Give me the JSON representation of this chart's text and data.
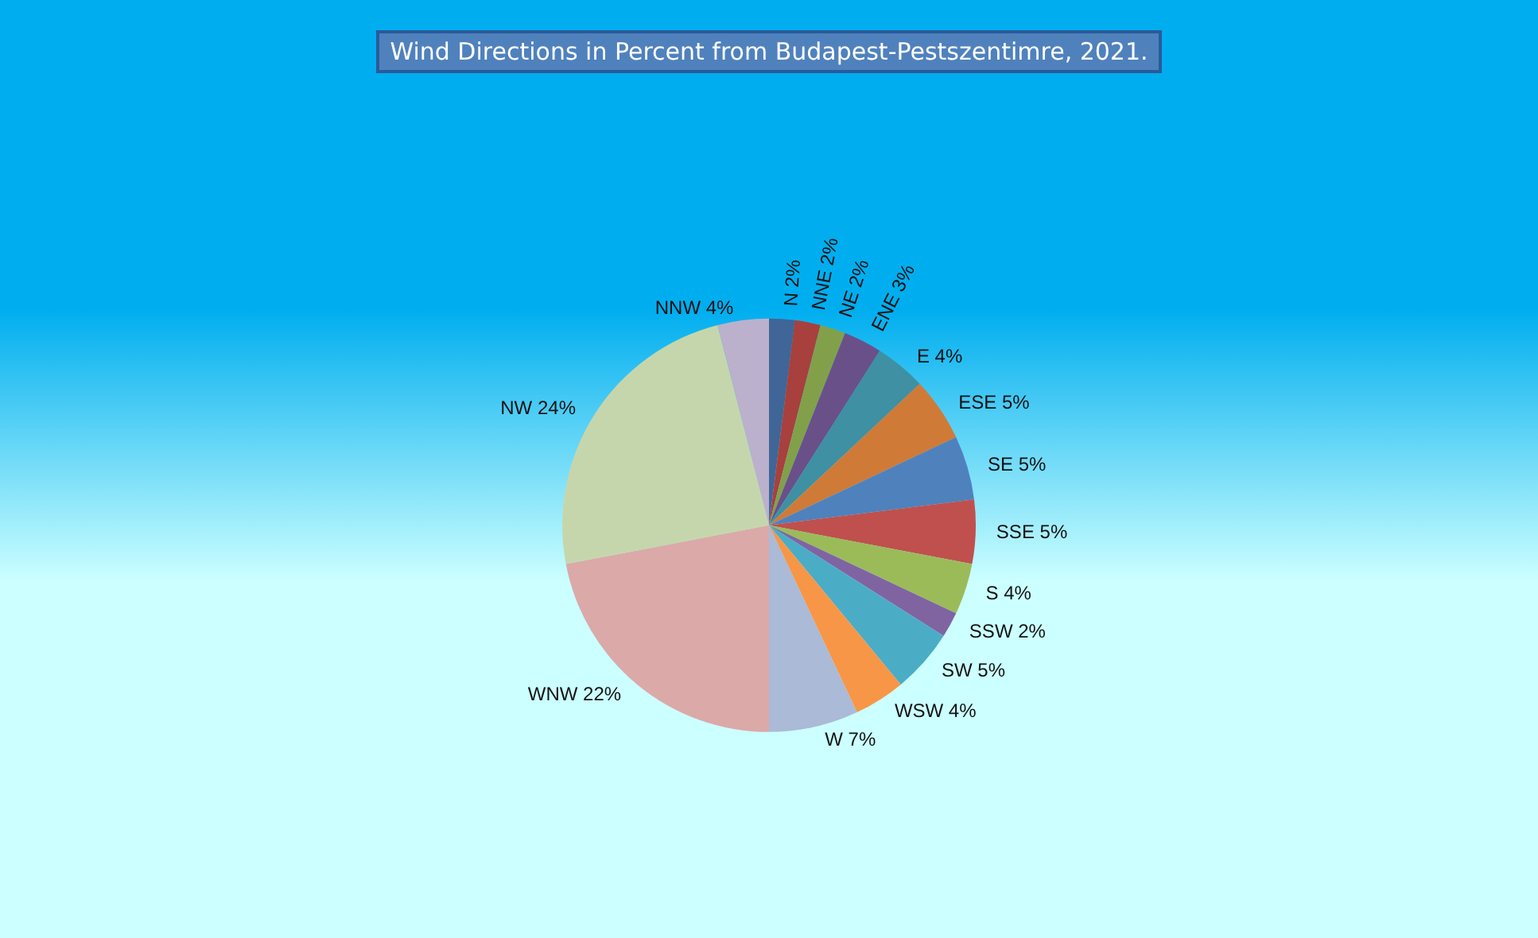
{
  "chart_data": {
    "type": "pie",
    "title": "Wind Directions in Percent from Budapest-Pestszentimre, 2021.",
    "categories": [
      "N",
      "NNE",
      "NE",
      "ENE",
      "E",
      "ESE",
      "SE",
      "SSE",
      "S",
      "SSW",
      "SW",
      "WSW",
      "W",
      "WNW",
      "NW",
      "NNW"
    ],
    "values": [
      2,
      2,
      2,
      3,
      4,
      5,
      5,
      5,
      4,
      2,
      5,
      4,
      7,
      22,
      24,
      4
    ],
    "colors": [
      "#3f6696",
      "#a8403e",
      "#82a04a",
      "#6a5088",
      "#3e90a2",
      "#d07a38",
      "#4f81bd",
      "#c0504d",
      "#9bbb59",
      "#8064a2",
      "#4bacc6",
      "#f79646",
      "#aabad7",
      "#dba9a8",
      "#c6d6ac",
      "#bbb1cc"
    ],
    "value_labels": [
      "2%",
      "2%",
      "2%",
      "3%",
      "4%",
      "5%",
      "5%",
      "5%",
      "4%",
      "2%",
      "5%",
      "4%",
      "7%",
      "22%",
      "24%",
      "4%"
    ],
    "legend": false
  }
}
